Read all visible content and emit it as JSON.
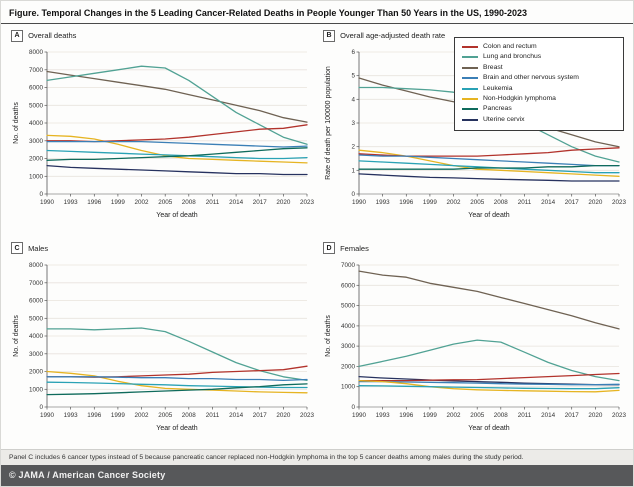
{
  "figure": {
    "title": "Figure. Temporal Changes in the 5 Leading Cancer-Related Deaths in People Younger Than 50 Years in the US, 1990-2023",
    "footnote": "Panel C includes 6 cancer types instead of 5 because pancreatic cancer replaced non-Hodgkin lymphoma in the top 5 cancer deaths among males during the study period.",
    "credit": "© JAMA / American Cancer Society"
  },
  "legend": {
    "entries": [
      {
        "label": "Colon and rectum",
        "color": "#b2332c"
      },
      {
        "label": "Lung and bronchus",
        "color": "#51a294"
      },
      {
        "label": "Breast",
        "color": "#6f6253"
      },
      {
        "label": "Brain and other nervous system",
        "color": "#3b7fb6"
      },
      {
        "label": "Leukemia",
        "color": "#2aa2b5"
      },
      {
        "label": "Non-Hodgkin lymphoma",
        "color": "#e6b422"
      },
      {
        "label": "Pancreas",
        "color": "#0f6b5c"
      },
      {
        "label": "Uterine cervix",
        "color": "#27325f"
      }
    ]
  },
  "chart_data": [
    {
      "type": "line",
      "panel_label": "A",
      "title": "Overall deaths",
      "xlabel": "Year of death",
      "ylabel": "No. of deaths",
      "x": [
        1990,
        1993,
        1996,
        1999,
        2002,
        2005,
        2008,
        2011,
        2014,
        2017,
        2020,
        2023
      ],
      "ylim": [
        0,
        8000
      ],
      "ytick_step": 1000,
      "grid": true,
      "series": [
        {
          "name": "Breast",
          "color": "#6f6253",
          "values": [
            6900,
            6700,
            6500,
            6300,
            6100,
            5900,
            5600,
            5300,
            5000,
            4700,
            4300,
            4050
          ]
        },
        {
          "name": "Lung and bronchus",
          "color": "#51a294",
          "values": [
            6400,
            6600,
            6800,
            7000,
            7200,
            7100,
            6400,
            5500,
            4600,
            3900,
            3200,
            2800
          ]
        },
        {
          "name": "Non-Hodgkin lymphoma",
          "color": "#e6b422",
          "values": [
            3300,
            3250,
            3100,
            2800,
            2450,
            2150,
            2000,
            1950,
            1900,
            1850,
            1800,
            1750
          ]
        },
        {
          "name": "Colon and rectum",
          "color": "#b2332c",
          "values": [
            3000,
            3000,
            2950,
            3000,
            3050,
            3100,
            3200,
            3350,
            3500,
            3650,
            3700,
            3900
          ]
        },
        {
          "name": "Brain and other nervous system",
          "color": "#3b7fb6",
          "values": [
            2950,
            2950,
            2950,
            2950,
            2950,
            2900,
            2850,
            2800,
            2750,
            2700,
            2650,
            2700
          ]
        },
        {
          "name": "Leukemia",
          "color": "#2aa2b5",
          "values": [
            2450,
            2400,
            2350,
            2300,
            2250,
            2200,
            2150,
            2100,
            2050,
            2000,
            2000,
            2050
          ]
        },
        {
          "name": "Pancreas",
          "color": "#0f6b5c",
          "values": [
            1900,
            1950,
            1950,
            2000,
            2050,
            2100,
            2150,
            2250,
            2350,
            2450,
            2550,
            2600
          ]
        },
        {
          "name": "Uterine cervix",
          "color": "#27325f",
          "values": [
            1600,
            1500,
            1450,
            1400,
            1350,
            1300,
            1250,
            1200,
            1150,
            1150,
            1100,
            1100
          ]
        }
      ]
    },
    {
      "type": "line",
      "panel_label": "B",
      "title": "Overall age-adjusted death rate",
      "xlabel": "Year of death",
      "ylabel": "Rate of death per 100000 population",
      "x": [
        1990,
        1993,
        1996,
        1999,
        2002,
        2005,
        2008,
        2011,
        2014,
        2017,
        2020,
        2023
      ],
      "ylim": [
        0,
        6
      ],
      "ytick_step": 1,
      "grid": true,
      "series": [
        {
          "name": "Breast",
          "color": "#6f6253",
          "values": [
            4.9,
            4.6,
            4.35,
            4.1,
            3.9,
            3.7,
            3.4,
            3.1,
            2.8,
            2.5,
            2.2,
            2.0
          ]
        },
        {
          "name": "Lung and bronchus",
          "color": "#51a294",
          "values": [
            4.5,
            4.5,
            4.45,
            4.4,
            4.3,
            4.1,
            3.6,
            3.0,
            2.5,
            2.0,
            1.6,
            1.35
          ]
        },
        {
          "name": "Non-Hodgkin lymphoma",
          "color": "#e6b422",
          "values": [
            1.85,
            1.75,
            1.6,
            1.4,
            1.2,
            1.05,
            1.0,
            0.95,
            0.9,
            0.85,
            0.8,
            0.75
          ]
        },
        {
          "name": "Colon and rectum",
          "color": "#b2332c",
          "values": [
            1.7,
            1.65,
            1.6,
            1.6,
            1.6,
            1.6,
            1.65,
            1.7,
            1.75,
            1.85,
            1.9,
            1.95
          ]
        },
        {
          "name": "Brain and other nervous system",
          "color": "#3b7fb6",
          "values": [
            1.65,
            1.6,
            1.6,
            1.55,
            1.5,
            1.45,
            1.4,
            1.35,
            1.3,
            1.25,
            1.2,
            1.2
          ]
        },
        {
          "name": "Leukemia",
          "color": "#2aa2b5",
          "values": [
            1.4,
            1.35,
            1.3,
            1.25,
            1.2,
            1.15,
            1.1,
            1.05,
            1.0,
            0.95,
            0.9,
            0.9
          ]
        },
        {
          "name": "Pancreas",
          "color": "#0f6b5c",
          "values": [
            1.05,
            1.05,
            1.05,
            1.05,
            1.05,
            1.1,
            1.1,
            1.1,
            1.15,
            1.15,
            1.2,
            1.2
          ]
        },
        {
          "name": "Uterine cervix",
          "color": "#27325f",
          "values": [
            0.85,
            0.8,
            0.75,
            0.7,
            0.68,
            0.65,
            0.62,
            0.6,
            0.58,
            0.55,
            0.55,
            0.55
          ]
        }
      ]
    },
    {
      "type": "line",
      "panel_label": "C",
      "title": "Males",
      "xlabel": "Year of death",
      "ylabel": "No. of deaths",
      "x": [
        1990,
        1993,
        1996,
        1999,
        2002,
        2005,
        2008,
        2011,
        2014,
        2017,
        2020,
        2023
      ],
      "ylim": [
        0,
        8000
      ],
      "ytick_step": 1000,
      "grid": true,
      "series": [
        {
          "name": "Lung and bronchus",
          "color": "#51a294",
          "values": [
            4400,
            4400,
            4350,
            4400,
            4450,
            4250,
            3700,
            3100,
            2500,
            2050,
            1700,
            1500
          ]
        },
        {
          "name": "Non-Hodgkin lymphoma",
          "color": "#e6b422",
          "values": [
            2000,
            1900,
            1750,
            1450,
            1200,
            1050,
            1000,
            950,
            900,
            850,
            820,
            800
          ]
        },
        {
          "name": "Colon and rectum",
          "color": "#b2332c",
          "values": [
            1700,
            1700,
            1680,
            1700,
            1750,
            1800,
            1850,
            1950,
            2000,
            2050,
            2100,
            2300
          ]
        },
        {
          "name": "Brain and other nervous system",
          "color": "#3b7fb6",
          "values": [
            1700,
            1700,
            1700,
            1680,
            1650,
            1650,
            1600,
            1600,
            1550,
            1550,
            1500,
            1550
          ]
        },
        {
          "name": "Leukemia",
          "color": "#2aa2b5",
          "values": [
            1400,
            1380,
            1350,
            1320,
            1280,
            1250,
            1200,
            1180,
            1150,
            1120,
            1100,
            1100
          ]
        },
        {
          "name": "Pancreas",
          "color": "#0f6b5c",
          "values": [
            700,
            720,
            750,
            800,
            850,
            900,
            950,
            1000,
            1080,
            1150,
            1250,
            1300
          ]
        }
      ]
    },
    {
      "type": "line",
      "panel_label": "D",
      "title": "Females",
      "xlabel": "Year of death",
      "ylabel": "No. of deaths",
      "x": [
        1990,
        1993,
        1996,
        1999,
        2002,
        2005,
        2008,
        2011,
        2014,
        2017,
        2020,
        2023
      ],
      "ylim": [
        0,
        7000
      ],
      "ytick_step": 1000,
      "grid": true,
      "series": [
        {
          "name": "Breast",
          "color": "#6f6253",
          "values": [
            6700,
            6500,
            6400,
            6100,
            5900,
            5700,
            5400,
            5100,
            4800,
            4500,
            4150,
            3850
          ]
        },
        {
          "name": "Lung and bronchus",
          "color": "#51a294",
          "values": [
            2000,
            2250,
            2500,
            2800,
            3100,
            3300,
            3200,
            2700,
            2200,
            1800,
            1500,
            1300
          ]
        },
        {
          "name": "Uterine cervix",
          "color": "#27325f",
          "values": [
            1500,
            1430,
            1380,
            1330,
            1280,
            1250,
            1220,
            1180,
            1150,
            1130,
            1100,
            1100
          ]
        },
        {
          "name": "Colon and rectum",
          "color": "#b2332c",
          "values": [
            1300,
            1300,
            1300,
            1320,
            1340,
            1350,
            1400,
            1450,
            1500,
            1550,
            1600,
            1650
          ]
        },
        {
          "name": "Brain and other nervous system",
          "color": "#3b7fb6",
          "values": [
            1250,
            1250,
            1230,
            1220,
            1200,
            1180,
            1150,
            1130,
            1120,
            1100,
            1100,
            1120
          ]
        },
        {
          "name": "Non-Hodgkin lymphoma",
          "color": "#e6b422",
          "values": [
            1300,
            1250,
            1150,
            1000,
            900,
            850,
            820,
            800,
            780,
            760,
            750,
            820
          ]
        },
        {
          "name": "Leukemia",
          "color": "#2aa2b5",
          "values": [
            1050,
            1040,
            1020,
            1000,
            980,
            960,
            940,
            920,
            910,
            900,
            900,
            950
          ]
        }
      ]
    }
  ]
}
